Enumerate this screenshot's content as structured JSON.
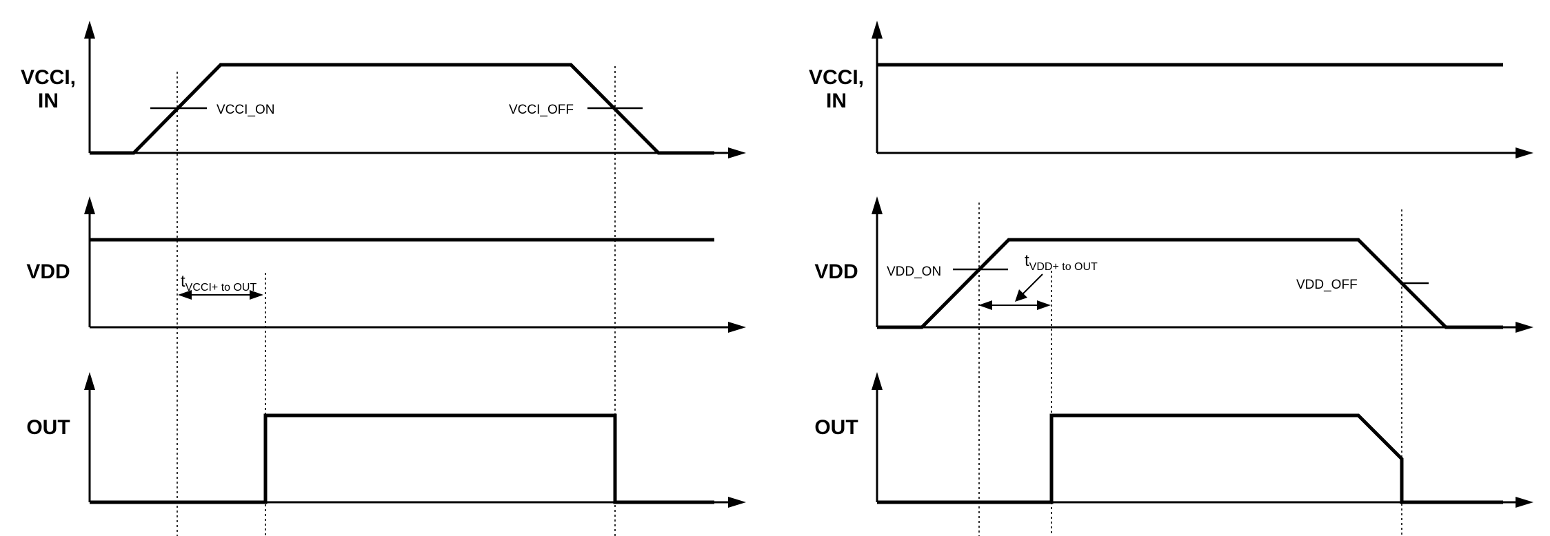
{
  "left_panel": {
    "vcci_label_line1": "VCCI,",
    "vcci_label_line2": "IN",
    "vdd_label": "VDD",
    "out_label": "OUT",
    "vcci_on_label": "VCCI_ON",
    "vcci_off_label": "VCCI_OFF",
    "delay_t": "t",
    "delay_sub": "VCCI+ to OUT"
  },
  "right_panel": {
    "vcci_label_line1": "VCCI,",
    "vcci_label_line2": "IN",
    "vdd_label": "VDD",
    "out_label": "OUT",
    "vdd_on_label": "VDD_ON",
    "vdd_off_label": "VDD_OFF",
    "delay_t": "t",
    "delay_sub": "VDD+ to OUT"
  }
}
